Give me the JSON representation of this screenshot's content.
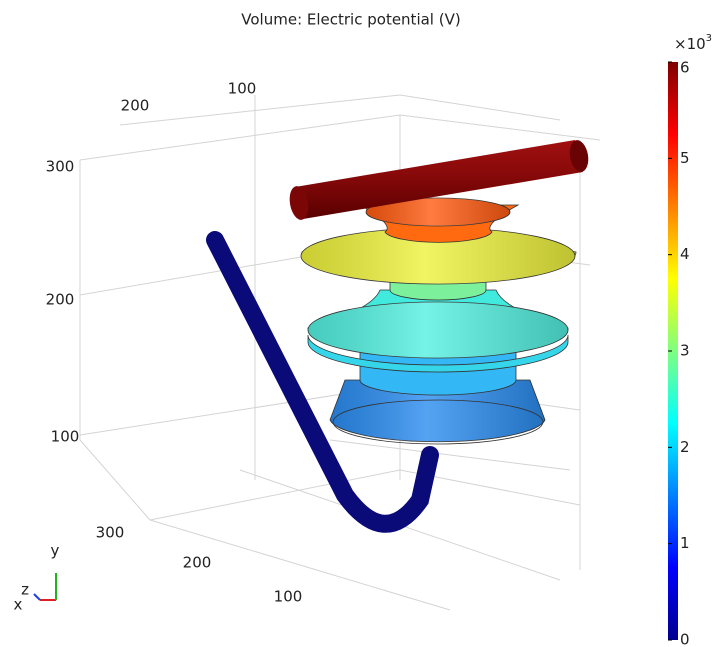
{
  "title": "Volume: Electric potential (V)",
  "colorbar": {
    "multiplier_base": "×10",
    "multiplier_exponent": "3",
    "range": [
      0,
      6
    ],
    "ticks": [
      0,
      1,
      2,
      3,
      4,
      5,
      6
    ]
  },
  "axes": {
    "top_ticks": [
      200,
      100
    ],
    "vertical_ticks": [
      300,
      200,
      100
    ],
    "bottom_ticks": [
      300,
      200,
      100
    ],
    "triad": {
      "y": "y",
      "z": "z",
      "x": "x"
    }
  }
}
